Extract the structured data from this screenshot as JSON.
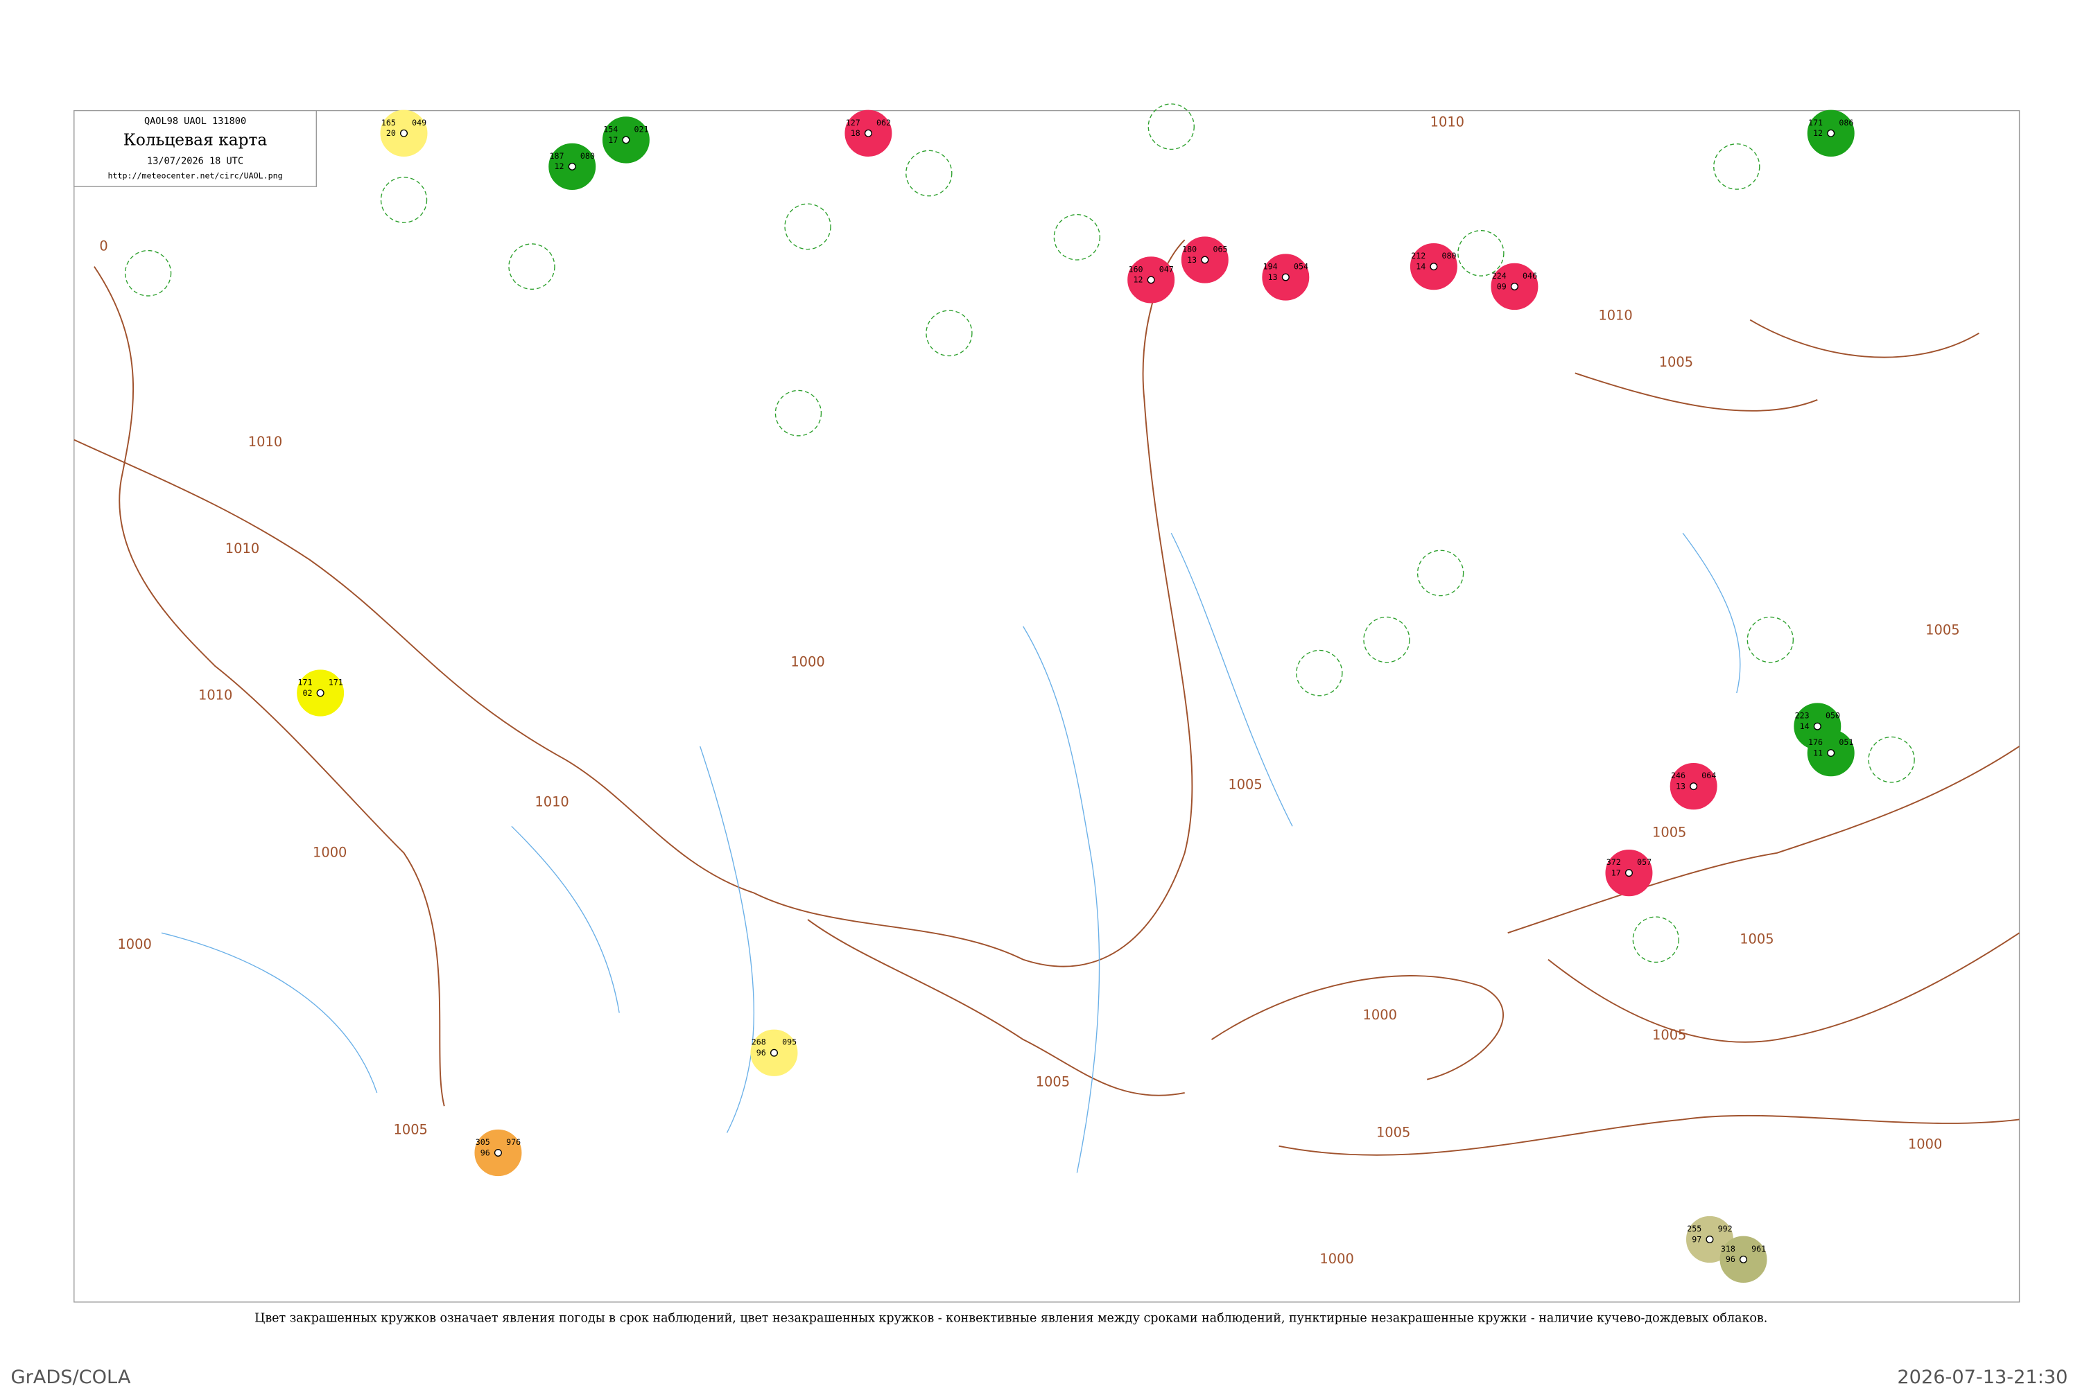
{
  "header": {
    "codes": "QAOL98  UAOL  131800",
    "title": "Кольцевая карта",
    "date": "13/07/2026 18 UTC",
    "url": "http://meteocenter.net/circ/UAOL.png"
  },
  "isobars": [
    "0",
    "1010",
    "1010",
    "1010",
    "1010",
    "1010",
    "1010",
    "1005",
    "1005",
    "1005",
    "1005",
    "1005",
    "1005",
    "1005",
    "1005",
    "1005",
    "1000",
    "1000",
    "1000",
    "1000",
    "1000",
    "1000"
  ],
  "stations": [
    {
      "pressure": "165",
      "temp": "20",
      "dew": "049",
      "color": "#fff176"
    },
    {
      "pressure": "154",
      "temp": "17",
      "dew": "021",
      "color": "#1aa31a"
    },
    {
      "pressure": "187",
      "temp": "12",
      "dew": "080",
      "color": "#1aa31a"
    },
    {
      "pressure": "127",
      "temp": "18",
      "dew": "062",
      "color": "#ee2a5a"
    },
    {
      "pressure": "160",
      "temp": "12",
      "dew": "047",
      "color": "#ee2a5a"
    },
    {
      "pressure": "180",
      "temp": "13",
      "dew": "065",
      "color": "#ee2a5a"
    },
    {
      "pressure": "194",
      "temp": "13",
      "dew": "054",
      "color": "#ee2a5a"
    },
    {
      "pressure": "212",
      "temp": "14",
      "dew": "080",
      "color": "#ee2a5a"
    },
    {
      "pressure": "224",
      "temp": "09",
      "dew": "046",
      "color": "#ee2a5a"
    },
    {
      "pressure": "171",
      "temp": "12",
      "dew": "086",
      "color": "#1aa31a"
    },
    {
      "pressure": "171",
      "temp": "02",
      "dew": "171",
      "color": "#f5f500"
    },
    {
      "pressure": "246",
      "temp": "13",
      "dew": "064",
      "color": "#ee2a5a"
    },
    {
      "pressure": "372",
      "temp": "17",
      "dew": "057",
      "color": "#ee2a5a"
    },
    {
      "pressure": "223",
      "temp": "14",
      "dew": "050",
      "color": "#1aa31a"
    },
    {
      "pressure": "176",
      "temp": "11",
      "dew": "051",
      "color": "#1aa31a"
    },
    {
      "pressure": "305",
      "temp": "96",
      "dew": "976",
      "color": "#f5a742"
    },
    {
      "pressure": "268",
      "temp": "96",
      "dew": "095",
      "color": "#fff176"
    },
    {
      "pressure": "255",
      "temp": "97",
      "dew": "992",
      "color": "#c8c48a"
    },
    {
      "pressure": "318",
      "temp": "96",
      "dew": "961",
      "color": "#b6b878"
    }
  ],
  "caption": "Цвет закрашенных кружков означает явления погоды в срок наблюдений, цвет незакрашенных кружков - конвективные явления между сроками наблюдений, пунктирные незакрашенные кружки - наличие кучево-дождевых облаков.",
  "footer": {
    "left": "GrADS/COLA",
    "right": "2026-07-13-21:30"
  }
}
